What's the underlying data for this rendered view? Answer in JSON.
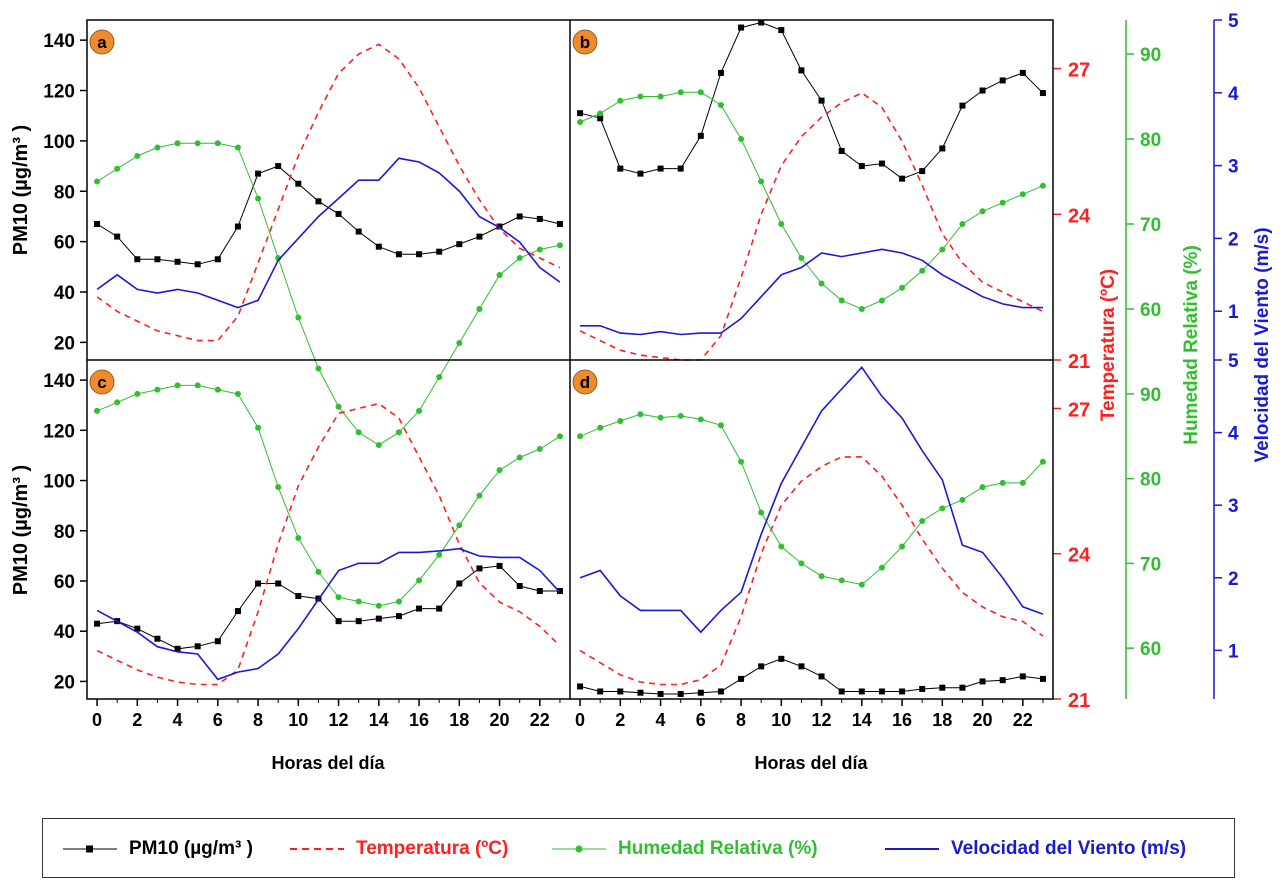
{
  "colors": {
    "pm10": "#000000",
    "temp": "#ff1f1f",
    "hum": "#2fbf2f",
    "wind": "#1a1ad6",
    "badge": "#f08a2a"
  },
  "axes": {
    "left_ylabel": "PM10 (µg/m³ )",
    "xlabel": "Horas del día",
    "temp_label": "Temperatura (ºC)",
    "hum_label": "Humedad Relativa (%)",
    "wind_label": "Velocidad del Viento (m/s)"
  },
  "legend": {
    "pm10": "PM10 (µg/m³ )",
    "temp": "Temperatura (ºC)",
    "hum": "Humedad Relativa (%)",
    "wind": "Velocidad del Viento (m/s)"
  },
  "chart_data": [
    {
      "panel": "a",
      "type": "line",
      "x": [
        0,
        1,
        2,
        3,
        4,
        5,
        6,
        7,
        8,
        9,
        10,
        11,
        12,
        13,
        14,
        15,
        16,
        17,
        18,
        19,
        20,
        21,
        22,
        23
      ],
      "series": [
        {
          "name": "PM10 (µg/m³ )",
          "axis": "left",
          "values": [
            67,
            62,
            53,
            53,
            52,
            51,
            53,
            66,
            87,
            90,
            83,
            76,
            71,
            64,
            58,
            55,
            55,
            56,
            59,
            62,
            66,
            70,
            69,
            67
          ]
        },
        {
          "name": "Temperatura (ºC)",
          "axis": "temp",
          "values": [
            22.3,
            22.0,
            21.8,
            21.6,
            21.5,
            21.4,
            21.4,
            21.9,
            23.0,
            24.1,
            25.2,
            26.1,
            26.9,
            27.3,
            27.5,
            27.2,
            26.6,
            25.8,
            25.0,
            24.3,
            23.7,
            23.3,
            23.1,
            22.9
          ]
        },
        {
          "name": "Humedad Relativa (%)",
          "axis": "hum",
          "values": [
            75,
            76.5,
            78,
            79,
            79.5,
            79.5,
            79.5,
            79,
            73,
            66,
            59,
            53,
            48.5,
            45.5,
            44,
            45.5,
            48,
            52,
            56,
            60,
            64,
            66,
            67,
            67.5
          ]
        },
        {
          "name": "Velocidad del Viento (m/s)",
          "axis": "wind",
          "values": [
            1.3,
            1.5,
            1.3,
            1.25,
            1.3,
            1.25,
            1.15,
            1.05,
            1.15,
            1.7,
            2.0,
            2.3,
            2.55,
            2.8,
            2.8,
            3.1,
            3.05,
            2.9,
            2.65,
            2.3,
            2.15,
            1.95,
            1.6,
            1.4
          ]
        }
      ]
    },
    {
      "panel": "b",
      "type": "line",
      "x": [
        0,
        1,
        2,
        3,
        4,
        5,
        6,
        7,
        8,
        9,
        10,
        11,
        12,
        13,
        14,
        15,
        16,
        17,
        18,
        19,
        20,
        21,
        22,
        23
      ],
      "series": [
        {
          "name": "PM10 (µg/m³ )",
          "axis": "left",
          "values": [
            111,
            109,
            89,
            87,
            89,
            89,
            102,
            127,
            145,
            147,
            144,
            128,
            116,
            96,
            90,
            91,
            85,
            88,
            97,
            114,
            120,
            124,
            127,
            119
          ]
        },
        {
          "name": "Temperatura (ºC)",
          "axis": "temp",
          "values": [
            21.6,
            21.4,
            21.2,
            21.1,
            21.05,
            21.0,
            21.0,
            21.5,
            22.7,
            24.0,
            25.0,
            25.6,
            26.0,
            26.3,
            26.5,
            26.2,
            25.5,
            24.6,
            23.6,
            23.0,
            22.6,
            22.4,
            22.2,
            22.0
          ]
        },
        {
          "name": "Humedad Relativa (%)",
          "axis": "hum",
          "values": [
            82,
            83,
            84.5,
            85,
            85,
            85.5,
            85.5,
            84,
            80,
            75,
            70,
            66,
            63,
            61,
            60,
            61,
            62.5,
            64.5,
            67,
            70,
            71.5,
            72.5,
            73.5,
            74.5
          ]
        },
        {
          "name": "Velocidad del Viento (m/s)",
          "axis": "wind",
          "values": [
            0.8,
            0.8,
            0.7,
            0.68,
            0.72,
            0.68,
            0.7,
            0.7,
            0.9,
            1.2,
            1.5,
            1.6,
            1.8,
            1.75,
            1.8,
            1.85,
            1.8,
            1.7,
            1.5,
            1.35,
            1.2,
            1.1,
            1.05,
            1.05
          ]
        }
      ]
    },
    {
      "panel": "c",
      "type": "line",
      "x": [
        0,
        1,
        2,
        3,
        4,
        5,
        6,
        7,
        8,
        9,
        10,
        11,
        12,
        13,
        14,
        15,
        16,
        17,
        18,
        19,
        20,
        21,
        22,
        23
      ],
      "series": [
        {
          "name": "PM10 (µg/m³ )",
          "axis": "left",
          "values": [
            43,
            44,
            41,
            37,
            33,
            34,
            36,
            48,
            59,
            59,
            54,
            53,
            44,
            44,
            45,
            46,
            49,
            49,
            59,
            65,
            66,
            58,
            56,
            56
          ]
        },
        {
          "name": "Temperatura (ºC)",
          "axis": "temp",
          "values": [
            22.0,
            21.8,
            21.6,
            21.45,
            21.35,
            21.3,
            21.3,
            21.6,
            22.8,
            24.2,
            25.4,
            26.2,
            26.9,
            27.0,
            27.1,
            26.8,
            26.0,
            25.2,
            24.2,
            23.4,
            23.0,
            22.8,
            22.5,
            22.1
          ]
        },
        {
          "name": "Humedad Relativa (%)",
          "axis": "hum",
          "values": [
            88,
            89,
            90,
            90.5,
            91,
            91,
            90.5,
            90,
            86,
            79,
            73,
            69,
            66,
            65.5,
            65,
            65.5,
            68,
            71,
            74.5,
            78,
            81,
            82.5,
            83.5,
            85
          ]
        },
        {
          "name": "Velocidad del Viento (m/s)",
          "axis": "wind",
          "values": [
            1.55,
            1.4,
            1.25,
            1.05,
            0.98,
            0.95,
            0.6,
            0.7,
            0.75,
            0.95,
            1.3,
            1.7,
            2.1,
            2.2,
            2.2,
            2.35,
            2.35,
            2.37,
            2.4,
            2.3,
            2.28,
            2.28,
            2.1,
            1.8
          ]
        }
      ]
    },
    {
      "panel": "d",
      "type": "line",
      "x": [
        0,
        1,
        2,
        3,
        4,
        5,
        6,
        7,
        8,
        9,
        10,
        11,
        12,
        13,
        14,
        15,
        16,
        17,
        18,
        19,
        20,
        21,
        22,
        23
      ],
      "series": [
        {
          "name": "PM10 (µg/m³ )",
          "axis": "left",
          "values": [
            18,
            16,
            16,
            15.5,
            15,
            15,
            15.5,
            16,
            21,
            26,
            29,
            26,
            22,
            16,
            16,
            16,
            16,
            17,
            17.5,
            17.5,
            20,
            20.5,
            22,
            21
          ]
        },
        {
          "name": "Temperatura (ºC)",
          "axis": "temp",
          "values": [
            22.0,
            21.75,
            21.5,
            21.35,
            21.3,
            21.3,
            21.4,
            21.7,
            22.7,
            24.0,
            25.0,
            25.5,
            25.8,
            26.0,
            26.0,
            25.6,
            25.0,
            24.3,
            23.7,
            23.2,
            22.9,
            22.7,
            22.6,
            22.3
          ]
        },
        {
          "name": "Humedad Relativa (%)",
          "axis": "hum",
          "values": [
            85,
            86,
            86.8,
            87.6,
            87.2,
            87.4,
            87,
            86.3,
            82,
            76,
            72,
            70,
            68.5,
            68,
            67.5,
            69.5,
            72,
            75,
            76.5,
            77.5,
            79,
            79.5,
            79.5,
            82
          ]
        },
        {
          "name": "Velocidad del Viento (m/s)",
          "axis": "wind",
          "values": [
            2.0,
            2.1,
            1.75,
            1.55,
            1.55,
            1.55,
            1.25,
            1.55,
            1.8,
            2.6,
            3.3,
            3.8,
            4.3,
            4.6,
            4.9,
            4.5,
            4.2,
            3.75,
            3.35,
            2.45,
            2.35,
            2.0,
            1.6,
            1.5
          ]
        }
      ]
    }
  ],
  "scales": {
    "x": {
      "min": -0.5,
      "max": 23.5,
      "ticks": [
        0,
        2,
        4,
        6,
        8,
        10,
        12,
        14,
        16,
        18,
        20,
        22
      ]
    },
    "left": {
      "min": 13,
      "max": 148,
      "ticks": [
        20,
        40,
        60,
        80,
        100,
        120,
        140
      ]
    },
    "temp": {
      "min": 21,
      "max": 28,
      "ticks": [
        21,
        24,
        27
      ]
    },
    "hum": {
      "min": 54,
      "max": 94,
      "ticks": [
        60,
        70,
        80,
        90
      ]
    },
    "wind": {
      "min": 0.33,
      "max": 5,
      "ticks": [
        1,
        2,
        3,
        4,
        5
      ]
    }
  }
}
